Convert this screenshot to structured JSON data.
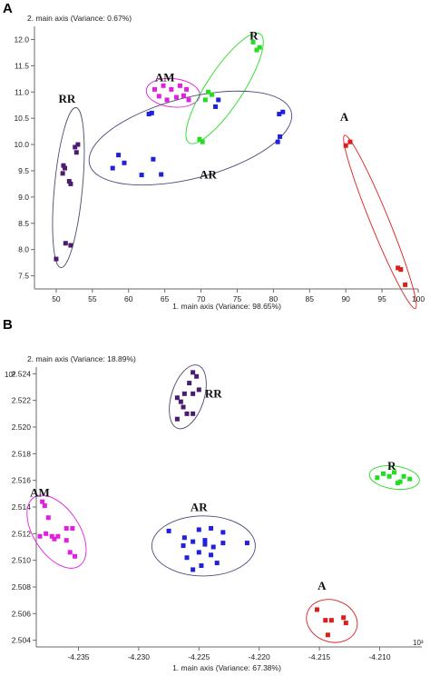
{
  "chart_data": [
    {
      "type": "scatter",
      "panel": "A",
      "ylabel": "2. main axis (Variance: 0.67%)",
      "xlabel": "1. main axis (Variance: 98.65%)",
      "xlim": [
        47,
        100
      ],
      "ylim": [
        7.25,
        12.25
      ],
      "xticks": [
        50,
        55,
        60,
        65,
        70,
        75,
        80,
        85,
        90,
        95,
        100
      ],
      "yticks": [
        7.5,
        8.0,
        8.5,
        9.0,
        9.5,
        10.0,
        10.5,
        11.0,
        11.5,
        12.0
      ],
      "ytick_labels": [
        "7.5",
        "8.0",
        "8.5",
        "9.0",
        "9.5",
        "10.0",
        "10.5",
        "11.0",
        "11.5",
        "12.0"
      ],
      "groups": [
        {
          "name": "RR",
          "color": "#4b1c6e",
          "label_pos": [
            51.5,
            10.8
          ],
          "ellipse": {
            "cx": 51.9,
            "cy": 9.25,
            "rx": 1.9,
            "ry": 1.8
          },
          "points": [
            [
              50.0,
              7.82
            ],
            [
              51.3,
              8.12
            ],
            [
              52.0,
              8.08
            ],
            [
              50.9,
              9.45
            ],
            [
              51.0,
              9.6
            ],
            [
              51.2,
              9.55
            ],
            [
              51.8,
              9.3
            ],
            [
              52.0,
              9.25
            ],
            [
              52.6,
              9.95
            ],
            [
              53.0,
              10.0
            ],
            [
              52.8,
              9.85
            ]
          ]
        },
        {
          "name": "AM",
          "color": "#e020e0",
          "label_pos": [
            65.0,
            11.2
          ],
          "ellipse": {
            "cx": 66.2,
            "cy": 10.95,
            "rx": 3.2,
            "ry": 0.3
          },
          "points": [
            [
              63.6,
              11.05
            ],
            [
              64.2,
              10.92
            ],
            [
              64.8,
              11.12
            ],
            [
              65.3,
              10.85
            ],
            [
              65.9,
              11.05
            ],
            [
              66.6,
              10.9
            ],
            [
              67.1,
              11.12
            ],
            [
              67.6,
              10.93
            ],
            [
              68.0,
              11.05
            ],
            [
              68.3,
              10.85
            ]
          ]
        },
        {
          "name": "R",
          "color": "#22dd22",
          "label_pos": [
            77.3,
            12.0
          ],
          "ellipse": {
            "cx": 73.9,
            "cy": 10.95,
            "rx": 4.5,
            "ry": 1.1
          },
          "points": [
            [
              69.8,
              10.1
            ],
            [
              70.2,
              10.05
            ],
            [
              70.6,
              10.85
            ],
            [
              71.0,
              11.0
            ],
            [
              71.5,
              10.95
            ],
            [
              77.2,
              11.95
            ],
            [
              77.7,
              11.8
            ],
            [
              78.1,
              11.85
            ]
          ]
        },
        {
          "name": "AR",
          "color": "#2020dd",
          "label_pos": [
            71.0,
            9.35
          ],
          "ellipse": {
            "cx": 70.0,
            "cy": 10.1,
            "rx": 13.5,
            "ry": 0.9
          },
          "points": [
            [
              57.8,
              9.55
            ],
            [
              58.6,
              9.8
            ],
            [
              59.4,
              9.65
            ],
            [
              61.8,
              9.42
            ],
            [
              63.4,
              9.72
            ],
            [
              64.5,
              9.43
            ],
            [
              62.8,
              10.58
            ],
            [
              63.2,
              10.6
            ],
            [
              72.0,
              10.72
            ],
            [
              72.4,
              10.85
            ],
            [
              80.6,
              10.05
            ],
            [
              80.9,
              10.15
            ],
            [
              80.8,
              10.58
            ],
            [
              81.3,
              10.62
            ]
          ]
        },
        {
          "name": "A",
          "color": "#dd1c1c",
          "label_pos": [
            89.8,
            10.45
          ],
          "ellipse": {
            "cx": 93.6,
            "cy": 8.9,
            "rx": 2.9,
            "ry": 1.6
          },
          "points": [
            [
              90.0,
              9.98
            ],
            [
              90.6,
              10.05
            ],
            [
              97.2,
              7.65
            ],
            [
              97.6,
              7.62
            ],
            [
              98.2,
              7.33
            ]
          ]
        }
      ]
    },
    {
      "type": "scatter",
      "panel": "B",
      "ylabel": "2. main axis (Variance: 18.89%)",
      "xlabel": "1. main axis (Variance: 67.38%)",
      "yexp": "10³",
      "xexp": "10³",
      "xlim": [
        -4.2385,
        -4.2065
      ],
      "ylim": [
        2.5035,
        2.5245
      ],
      "xticks": [
        -4.235,
        -4.23,
        -4.225,
        -4.22,
        -4.215,
        -4.21
      ],
      "xtick_labels": [
        "-4.235",
        "-4.230",
        "-4.225",
        "-4.220",
        "-4.215",
        "-4.210"
      ],
      "yticks": [
        2.504,
        2.506,
        2.508,
        2.51,
        2.512,
        2.514,
        2.516,
        2.518,
        2.52,
        2.522,
        2.524
      ],
      "ytick_labels": [
        "2.504",
        "2.506",
        "2.508",
        "2.510",
        "2.512",
        "2.514",
        "2.516",
        "2.518",
        "2.520",
        "2.522",
        "2.524"
      ],
      "groups": [
        {
          "name": "RR",
          "color": "#4b1c6e",
          "label_pos": [
            -4.2238,
            2.5222
          ],
          "ellipse": {
            "cx": -4.2258,
            "cy": 2.5218,
            "rx": 0.0016,
            "ry": 0.0028
          },
          "points": [
            [
              -4.2255,
              2.5241
            ],
            [
              -4.2252,
              2.5238
            ],
            [
              -4.2258,
              2.5233
            ],
            [
              -4.2262,
              2.5225
            ],
            [
              -4.2268,
              2.5222
            ],
            [
              -4.2255,
              2.5225
            ],
            [
              -4.225,
              2.5228
            ],
            [
              -4.2263,
              2.5215
            ],
            [
              -4.226,
              2.521
            ],
            [
              -4.2268,
              2.5206
            ],
            [
              -4.2255,
              2.521
            ],
            [
              -4.2265,
              2.5219
            ]
          ]
        },
        {
          "name": "AM",
          "color": "#e020e0",
          "label_pos": [
            -4.2382,
            2.5148
          ],
          "ellipse": {
            "cx": -4.2366,
            "cy": 2.5121,
            "rx": 0.0017,
            "ry": 0.0028
          },
          "points": [
            [
              -4.238,
              2.5144
            ],
            [
              -4.2378,
              2.5141
            ],
            [
              -4.2375,
              2.5132
            ],
            [
              -4.2382,
              2.5118
            ],
            [
              -4.2377,
              2.512
            ],
            [
              -4.2372,
              2.5118
            ],
            [
              -4.2367,
              2.5118
            ],
            [
              -4.236,
              2.5124
            ],
            [
              -4.2355,
              2.5124
            ],
            [
              -4.236,
              2.5115
            ],
            [
              -4.2357,
              2.5106
            ],
            [
              -4.2353,
              2.5103
            ],
            [
              -4.237,
              2.5116
            ]
          ]
        },
        {
          "name": "R",
          "color": "#22dd22",
          "label_pos": [
            -4.209,
            2.5168
          ],
          "ellipse": {
            "cx": -4.2086,
            "cy": 2.5162,
            "rx": 0.0019,
            "ry": 0.0008
          },
          "points": [
            [
              -4.2102,
              2.5162
            ],
            [
              -4.2097,
              2.5165
            ],
            [
              -4.2092,
              2.5163
            ],
            [
              -4.2088,
              2.5166
            ],
            [
              -4.2083,
              2.5159
            ],
            [
              -4.208,
              2.5163
            ],
            [
              -4.2075,
              2.5161
            ],
            [
              -4.2085,
              2.5158
            ]
          ]
        },
        {
          "name": "AR",
          "color": "#2020dd",
          "label_pos": [
            -4.225,
            2.5137
          ],
          "ellipse": {
            "cx": -4.2245,
            "cy": 2.5114,
            "rx": 0.0044,
            "ry": 0.0023
          },
          "points": [
            [
              -4.2275,
              2.5122
            ],
            [
              -4.2263,
              2.5111
            ],
            [
              -4.225,
              2.5123
            ],
            [
              -4.224,
              2.5124
            ],
            [
              -4.223,
              2.5121
            ],
            [
              -4.221,
              2.5113
            ],
            [
              -4.2255,
              2.5114
            ],
            [
              -4.2245,
              2.5112
            ],
            [
              -4.2238,
              2.511
            ],
            [
              -4.223,
              2.5113
            ],
            [
              -4.225,
              2.5106
            ],
            [
              -4.224,
              2.5104
            ],
            [
              -4.226,
              2.5102
            ],
            [
              -4.2248,
              2.5096
            ],
            [
              -4.2235,
              2.5098
            ],
            [
              -4.2255,
              2.5093
            ],
            [
              -4.2245,
              2.5115
            ],
            [
              -4.2262,
              2.5117
            ]
          ]
        },
        {
          "name": "A",
          "color": "#dd1c1c",
          "label_pos": [
            -4.2148,
            2.5078
          ],
          "ellipse": {
            "cx": -4.2142,
            "cy": 2.5055,
            "rx": 0.0021,
            "ry": 0.0012
          },
          "points": [
            [
              -4.2152,
              2.5063
            ],
            [
              -4.2145,
              2.5055
            ],
            [
              -4.214,
              2.5055
            ],
            [
              -4.213,
              2.5057
            ],
            [
              -4.2128,
              2.5053
            ],
            [
              -4.2143,
              2.5044
            ]
          ]
        }
      ]
    }
  ]
}
